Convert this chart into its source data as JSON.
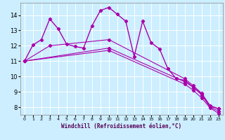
{
  "xlabel": "Windchill (Refroidissement éolien,°C)",
  "xlim": [
    -0.5,
    23.5
  ],
  "ylim": [
    7.5,
    14.8
  ],
  "xticks": [
    0,
    1,
    2,
    3,
    4,
    5,
    6,
    7,
    8,
    9,
    10,
    11,
    12,
    13,
    14,
    15,
    16,
    17,
    18,
    19,
    20,
    21,
    22,
    23
  ],
  "yticks": [
    8,
    9,
    10,
    11,
    12,
    13,
    14
  ],
  "bg_color": "#cceeff",
  "line_color": "#aa00aa",
  "grid_color": "#ffffff",
  "series": [
    {
      "x": [
        0,
        1,
        2,
        3,
        4,
        5,
        6,
        7,
        8,
        9,
        10,
        11,
        12,
        13,
        14,
        15,
        16,
        17,
        18,
        19,
        20,
        21,
        22,
        23
      ],
      "y": [
        11.0,
        12.05,
        12.4,
        13.75,
        13.1,
        12.1,
        11.95,
        11.85,
        13.3,
        14.3,
        14.5,
        14.05,
        13.6,
        11.3,
        13.6,
        12.2,
        11.8,
        10.5,
        9.85,
        9.75,
        9.3,
        8.85,
        8.05,
        7.9
      ]
    },
    {
      "x": [
        0,
        3,
        10,
        19,
        20,
        21,
        22,
        23
      ],
      "y": [
        11.0,
        12.0,
        12.4,
        9.85,
        9.4,
        8.9,
        8.1,
        7.9
      ]
    },
    {
      "x": [
        0,
        10,
        19,
        20,
        21,
        22,
        23
      ],
      "y": [
        11.0,
        11.85,
        9.65,
        9.3,
        8.8,
        8.0,
        7.75
      ]
    },
    {
      "x": [
        0,
        10,
        19,
        20,
        21,
        22,
        23
      ],
      "y": [
        11.0,
        11.7,
        9.5,
        9.1,
        8.6,
        7.95,
        7.6
      ]
    }
  ]
}
